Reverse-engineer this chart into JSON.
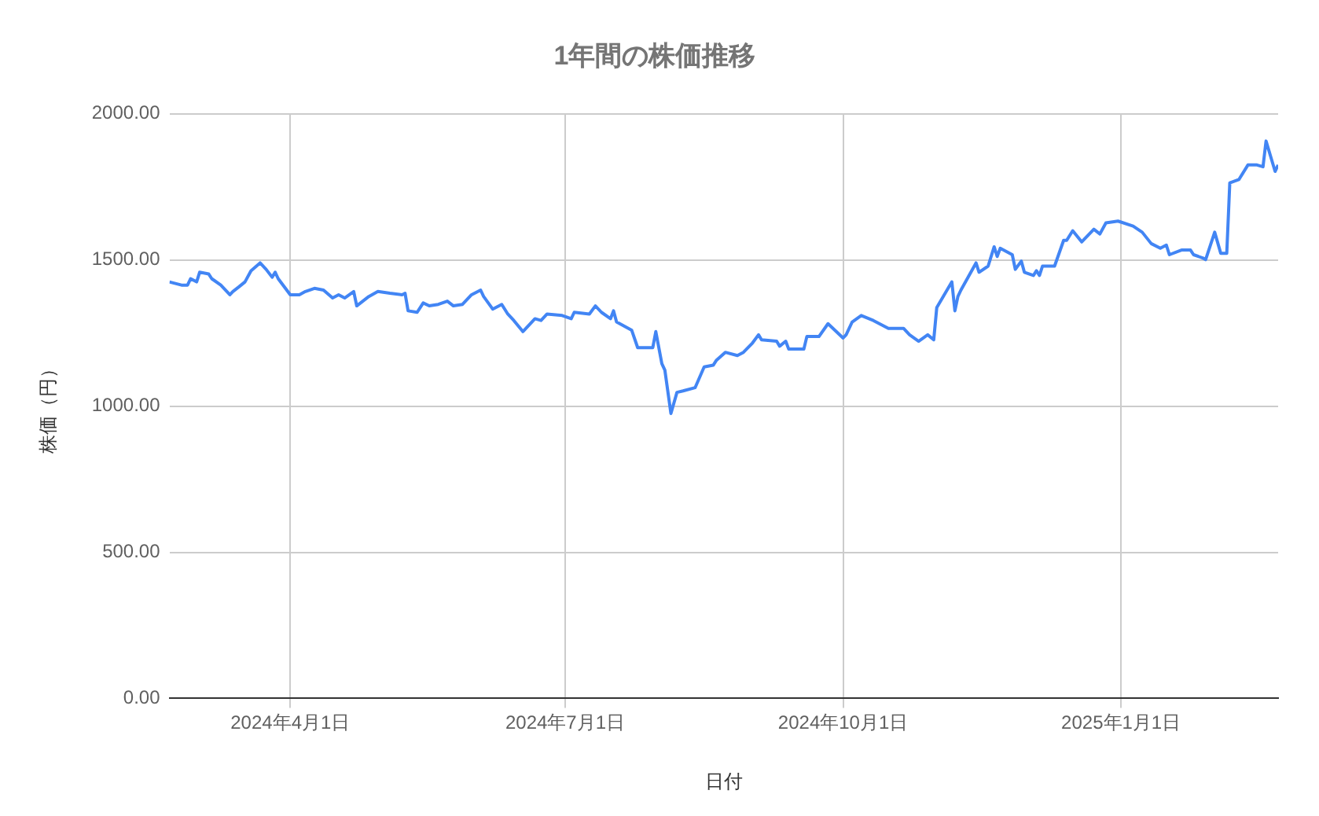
{
  "chart_data": {
    "type": "line",
    "title": "1年間の株価推移",
    "xlabel": "日付",
    "ylabel": "株価（円）",
    "x": [
      "2024-02-21",
      "2024-02-25",
      "2024-02-27",
      "2024-02-28",
      "2024-03-01",
      "2024-03-02",
      "2024-03-05",
      "2024-03-06",
      "2024-03-09",
      "2024-03-12",
      "2024-03-13",
      "2024-03-15",
      "2024-03-17",
      "2024-03-19",
      "2024-03-22",
      "2024-03-24",
      "2024-03-26",
      "2024-03-27",
      "2024-03-28",
      "2024-04-01",
      "2024-04-04",
      "2024-04-06",
      "2024-04-09",
      "2024-04-12",
      "2024-04-15",
      "2024-04-17",
      "2024-04-19",
      "2024-04-22",
      "2024-04-23",
      "2024-04-27",
      "2024-04-30",
      "2024-05-04",
      "2024-05-08",
      "2024-05-09",
      "2024-05-10",
      "2024-05-13",
      "2024-05-15",
      "2024-05-17",
      "2024-05-20",
      "2024-05-23",
      "2024-05-25",
      "2024-05-28",
      "2024-05-31",
      "2024-06-03",
      "2024-06-04",
      "2024-06-07",
      "2024-06-10",
      "2024-06-12",
      "2024-06-14",
      "2024-06-17",
      "2024-06-21",
      "2024-06-23",
      "2024-06-25",
      "2024-06-30",
      "2024-07-03",
      "2024-07-04",
      "2024-07-09",
      "2024-07-11",
      "2024-07-13",
      "2024-07-16",
      "2024-07-17",
      "2024-07-18",
      "2024-07-23",
      "2024-07-25",
      "2024-07-30",
      "2024-07-31",
      "2024-08-02",
      "2024-08-03",
      "2024-08-05",
      "2024-08-07",
      "2024-08-09",
      "2024-08-13",
      "2024-08-16",
      "2024-08-19",
      "2024-08-20",
      "2024-08-23",
      "2024-08-27",
      "2024-08-29",
      "2024-09-01",
      "2024-09-03",
      "2024-09-04",
      "2024-09-09",
      "2024-09-10",
      "2024-09-12",
      "2024-09-13",
      "2024-09-18",
      "2024-09-19",
      "2024-09-23",
      "2024-09-26",
      "2024-10-01",
      "2024-10-02",
      "2024-10-04",
      "2024-10-07",
      "2024-10-11",
      "2024-10-16",
      "2024-10-21",
      "2024-10-23",
      "2024-10-26",
      "2024-10-29",
      "2024-10-31",
      "2024-11-01",
      "2024-11-06",
      "2024-11-07",
      "2024-11-08",
      "2024-11-09",
      "2024-11-14",
      "2024-11-15",
      "2024-11-18",
      "2024-11-20",
      "2024-11-21",
      "2024-11-22",
      "2024-11-26",
      "2024-11-27",
      "2024-11-29",
      "2024-11-30",
      "2024-12-03",
      "2024-12-04",
      "2024-12-05",
      "2024-12-06",
      "2024-12-10",
      "2024-12-13",
      "2024-12-14",
      "2024-12-16",
      "2024-12-19",
      "2024-12-23",
      "2024-12-25",
      "2024-12-27",
      "2024-12-31",
      "2025-01-05",
      "2025-01-08",
      "2025-01-11",
      "2025-01-14",
      "2025-01-16",
      "2025-01-17",
      "2025-01-21",
      "2025-01-24",
      "2025-01-25",
      "2025-01-28",
      "2025-01-29",
      "2025-02-01",
      "2025-02-03",
      "2025-02-05",
      "2025-02-06",
      "2025-02-09",
      "2025-02-12",
      "2025-02-15",
      "2025-02-17",
      "2025-02-18",
      "2025-02-21",
      "2025-02-22"
    ],
    "series": [
      {
        "color": "#4285f4",
        "values": [
          1425,
          1414,
          1414,
          1436,
          1425,
          1458,
          1452,
          1436,
          1414,
          1381,
          1392,
          1408,
          1425,
          1463,
          1490,
          1468,
          1441,
          1458,
          1436,
          1381,
          1381,
          1392,
          1403,
          1397,
          1370,
          1381,
          1370,
          1392,
          1343,
          1375,
          1392,
          1386,
          1381,
          1386,
          1326,
          1321,
          1353,
          1343,
          1348,
          1359,
          1343,
          1348,
          1381,
          1397,
          1375,
          1332,
          1348,
          1315,
          1293,
          1255,
          1299,
          1293,
          1315,
          1310,
          1299,
          1321,
          1315,
          1343,
          1321,
          1299,
          1326,
          1288,
          1260,
          1200,
          1200,
          1255,
          1145,
          1123,
          975,
          1047,
          1052,
          1063,
          1134,
          1140,
          1156,
          1184,
          1173,
          1184,
          1216,
          1244,
          1227,
          1222,
          1205,
          1222,
          1195,
          1195,
          1238,
          1238,
          1282,
          1233,
          1244,
          1288,
          1310,
          1293,
          1266,
          1266,
          1244,
          1222,
          1244,
          1227,
          1337,
          1425,
          1326,
          1375,
          1397,
          1490,
          1458,
          1479,
          1545,
          1512,
          1540,
          1518,
          1468,
          1496,
          1458,
          1447,
          1463,
          1447,
          1479,
          1479,
          1567,
          1567,
          1600,
          1562,
          1605,
          1589,
          1627,
          1633,
          1616,
          1595,
          1556,
          1540,
          1551,
          1518,
          1534,
          1534,
          1518,
          1507,
          1501,
          1595,
          1523,
          1523,
          1764,
          1775,
          1825,
          1825,
          1819,
          1907,
          1803,
          1825
        ]
      }
    ],
    "xlim": [
      "2024-02-21",
      "2025-02-22"
    ],
    "xticks": [
      {
        "value": "2024-04-01",
        "label": "2024年4月1日"
      },
      {
        "value": "2024-07-01",
        "label": "2024年7月1日"
      },
      {
        "value": "2024-10-01",
        "label": "2024年10月1日"
      },
      {
        "value": "2025-01-01",
        "label": "2025年1月1日"
      }
    ],
    "ylim": [
      0,
      2000
    ],
    "yticks": [
      {
        "value": 0,
        "label": "0.00"
      },
      {
        "value": 500,
        "label": "500.00"
      },
      {
        "value": 1000,
        "label": "1000.00"
      },
      {
        "value": 1500,
        "label": "1500.00"
      },
      {
        "value": 2000,
        "label": "2000.00"
      }
    ],
    "grid": true,
    "legend": false,
    "marker": "none",
    "line_style": "solid"
  }
}
